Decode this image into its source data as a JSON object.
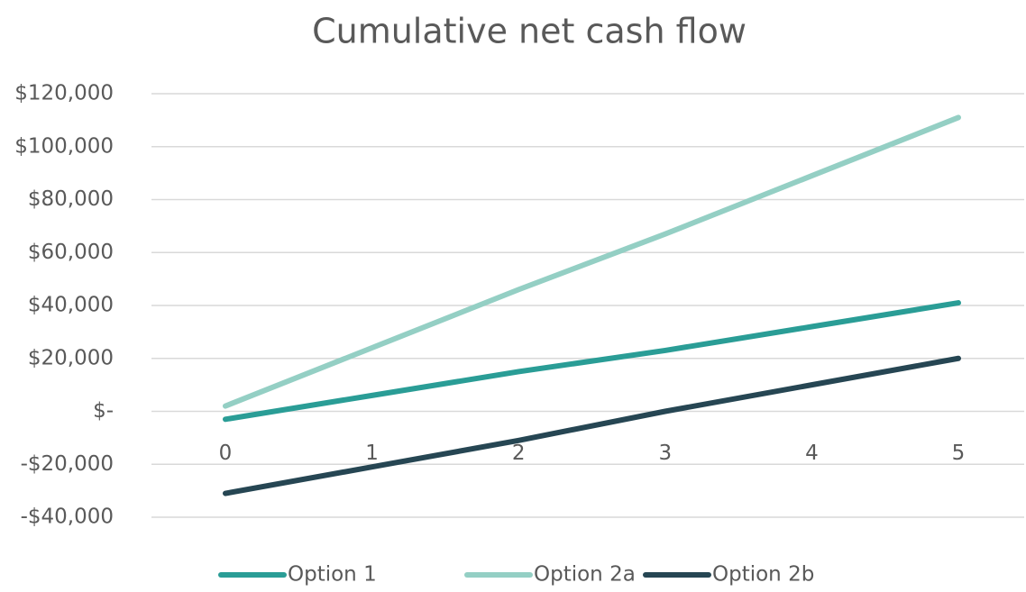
{
  "chart_data": {
    "type": "line",
    "title": "Cumulative net cash flow",
    "x": [
      0,
      1,
      2,
      3,
      4,
      5
    ],
    "xlim": [
      0,
      5
    ],
    "xticks": [
      0,
      1,
      2,
      3,
      4,
      5
    ],
    "ylim": [
      -40000,
      120000
    ],
    "yticks": [
      {
        "value": -40000,
        "label": "-$40,000"
      },
      {
        "value": -20000,
        "label": "-$20,000"
      },
      {
        "value": 0,
        "label": "$-"
      },
      {
        "value": 20000,
        "label": "$20,000"
      },
      {
        "value": 40000,
        "label": "$40,000"
      },
      {
        "value": 60000,
        "label": "$60,000"
      },
      {
        "value": 80000,
        "label": "$80,000"
      },
      {
        "value": 100000,
        "label": "$100,000"
      },
      {
        "value": 120000,
        "label": "$120,000"
      }
    ],
    "grid": true,
    "legend": "bottom",
    "series": [
      {
        "name": "Option 1",
        "color": "#2a9d96",
        "values": [
          -3000,
          6000,
          15000,
          23000,
          32000,
          41000
        ]
      },
      {
        "name": "Option 2a",
        "color": "#94cfc4",
        "values": [
          2000,
          24000,
          46000,
          67000,
          89000,
          111000
        ]
      },
      {
        "name": "Option 2b",
        "color": "#264653",
        "values": [
          -31000,
          -21000,
          -11000,
          0,
          10000,
          20000
        ]
      }
    ]
  }
}
